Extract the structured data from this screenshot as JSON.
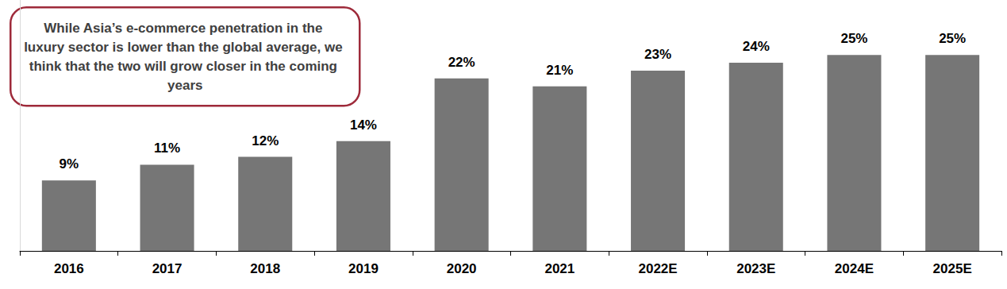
{
  "chart_data": {
    "type": "bar",
    "annotation": "While Asia’s e-commerce penetration in the luxury sector is lower than the global average, we think that the two will grow closer in the coming years",
    "categories": [
      "2016",
      "2017",
      "2018",
      "2019",
      "2020",
      "2021",
      "2022E",
      "2023E",
      "2024E",
      "2025E"
    ],
    "values": [
      9,
      11,
      12,
      14,
      22,
      21,
      23,
      24,
      25,
      25
    ],
    "value_labels": [
      "9%",
      "11%",
      "12%",
      "14%",
      "22%",
      "21%",
      "23%",
      "24%",
      "25%",
      "25%"
    ],
    "color": "#767676",
    "ylim": [
      0,
      32
    ],
    "grid": false,
    "data_labels": true,
    "tick_labels": "x"
  }
}
